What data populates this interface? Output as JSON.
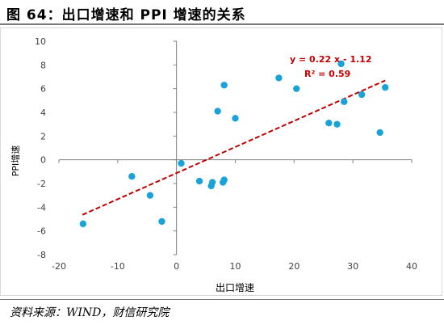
{
  "figure": {
    "title": "图 64：出口增速和 PPI 增速的关系",
    "source": "资料来源：WIND，财信研究院"
  },
  "chart_data": {
    "type": "scatter",
    "xlabel": "出口增速",
    "ylabel": "PPI增速",
    "xlim": [
      -20,
      40
    ],
    "ylim": [
      -8,
      10
    ],
    "x_ticks": [
      -20,
      -10,
      0,
      10,
      20,
      30,
      40
    ],
    "y_ticks": [
      -8,
      -6,
      -4,
      -2,
      0,
      2,
      4,
      6,
      8,
      10
    ],
    "grid": false,
    "points": [
      {
        "x": -15.9,
        "y": -5.4
      },
      {
        "x": -7.6,
        "y": -1.4
      },
      {
        "x": -4.5,
        "y": -3.0
      },
      {
        "x": -2.5,
        "y": -5.2
      },
      {
        "x": 0.8,
        "y": -0.3
      },
      {
        "x": 3.9,
        "y": -1.8
      },
      {
        "x": 5.9,
        "y": -2.2
      },
      {
        "x": 6.1,
        "y": -1.9
      },
      {
        "x": 7.9,
        "y": -1.9
      },
      {
        "x": 8.1,
        "y": -1.7
      },
      {
        "x": 7.0,
        "y": 4.1
      },
      {
        "x": 8.1,
        "y": 6.3
      },
      {
        "x": 10.0,
        "y": 3.5
      },
      {
        "x": 17.4,
        "y": 6.9
      },
      {
        "x": 20.4,
        "y": 6.0
      },
      {
        "x": 25.9,
        "y": 3.1
      },
      {
        "x": 27.3,
        "y": 3.0
      },
      {
        "x": 28.0,
        "y": 8.1
      },
      {
        "x": 28.5,
        "y": 4.9
      },
      {
        "x": 31.5,
        "y": 5.5
      },
      {
        "x": 34.6,
        "y": 2.3
      },
      {
        "x": 35.5,
        "y": 6.1
      }
    ],
    "trendline": {
      "slope": 0.22,
      "intercept": -1.12,
      "x_range": [
        -16,
        35.5
      ],
      "equation_label": "y = 0.22 x - 1.12",
      "r2_label": "R² = 0.59"
    },
    "colors": {
      "points": "#1aa3d9",
      "trendline": "#c00000",
      "axis": "#7f7f7f",
      "tick_text": "#404040"
    }
  }
}
